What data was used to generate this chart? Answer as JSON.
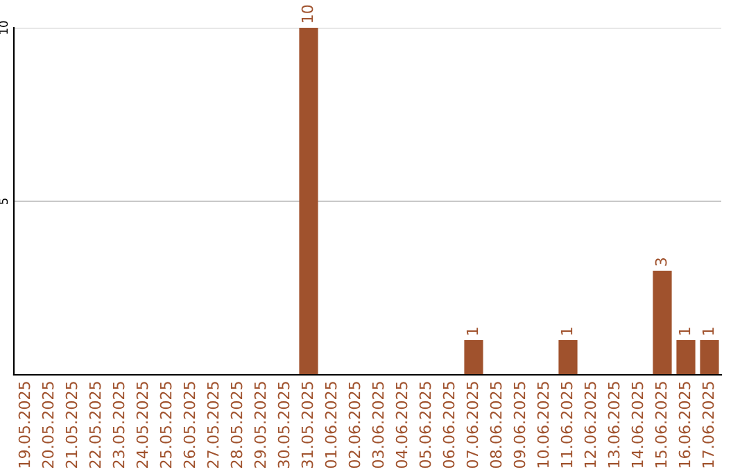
{
  "chart_data": {
    "type": "bar",
    "categories": [
      "19.05.2025",
      "20.05.2025",
      "21.05.2025",
      "22.05.2025",
      "23.05.2025",
      "24.05.2025",
      "25.05.2025",
      "26.05.2025",
      "27.05.2025",
      "28.05.2025",
      "29.05.2025",
      "30.05.2025",
      "31.05.2025",
      "01.06.2025",
      "02.06.2025",
      "03.06.2025",
      "04.06.2025",
      "05.06.2025",
      "06.06.2025",
      "07.06.2025",
      "08.06.2025",
      "09.06.2025",
      "10.06.2025",
      "11.06.2025",
      "12.06.2025",
      "13.06.2025",
      "14.06.2025",
      "15.06.2025",
      "16.06.2025",
      "17.06.2025"
    ],
    "values": [
      0,
      0,
      0,
      0,
      0,
      0,
      0,
      0,
      0,
      0,
      0,
      0,
      10,
      0,
      0,
      0,
      0,
      0,
      0,
      1,
      0,
      0,
      0,
      1,
      0,
      0,
      0,
      3,
      1,
      1
    ],
    "value_labels": [
      null,
      null,
      null,
      null,
      null,
      null,
      null,
      null,
      null,
      null,
      null,
      null,
      "10",
      null,
      null,
      null,
      null,
      null,
      null,
      "1",
      null,
      null,
      null,
      "1",
      null,
      null,
      null,
      "3",
      "1",
      "1"
    ],
    "color": "#a0522d",
    "ylim": [
      0,
      10
    ],
    "yticks": [
      5,
      10
    ],
    "grid": "y"
  }
}
